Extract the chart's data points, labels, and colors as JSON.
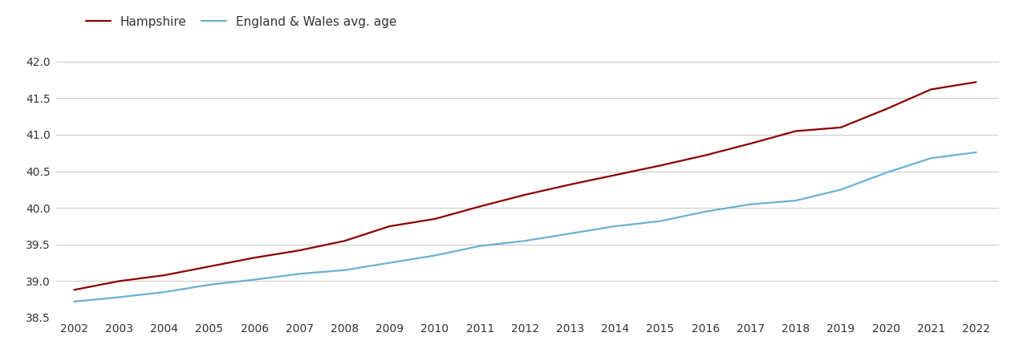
{
  "years": [
    2002,
    2003,
    2004,
    2005,
    2006,
    2007,
    2008,
    2009,
    2010,
    2011,
    2012,
    2013,
    2014,
    2015,
    2016,
    2017,
    2018,
    2019,
    2020,
    2021,
    2022
  ],
  "hampshire": [
    38.88,
    39.0,
    39.08,
    39.2,
    39.32,
    39.42,
    39.55,
    39.75,
    39.85,
    40.02,
    40.18,
    40.32,
    40.45,
    40.58,
    40.72,
    40.88,
    41.05,
    41.1,
    41.35,
    41.62,
    41.72
  ],
  "england_wales": [
    38.72,
    38.78,
    38.85,
    38.95,
    39.02,
    39.1,
    39.15,
    39.25,
    39.35,
    39.48,
    39.55,
    39.65,
    39.75,
    39.82,
    39.95,
    40.05,
    40.1,
    40.25,
    40.48,
    40.68,
    40.76
  ],
  "hampshire_color": "#8B0000",
  "england_wales_color": "#6ab0d4",
  "hampshire_label": "Hampshire",
  "england_wales_label": "England & Wales avg. age",
  "legend_text_color": "#333333",
  "ylim_min": 38.5,
  "ylim_max": 42.25,
  "yticks": [
    38.5,
    39.0,
    39.5,
    40.0,
    40.5,
    41.0,
    41.5,
    42.0
  ],
  "background_color": "#ffffff",
  "grid_color": "#cccccc",
  "line_width": 1.6,
  "legend_fontsize": 11,
  "tick_fontsize": 10,
  "tick_color": "#333333",
  "xlim_min": 2001.6,
  "xlim_max": 2022.5
}
